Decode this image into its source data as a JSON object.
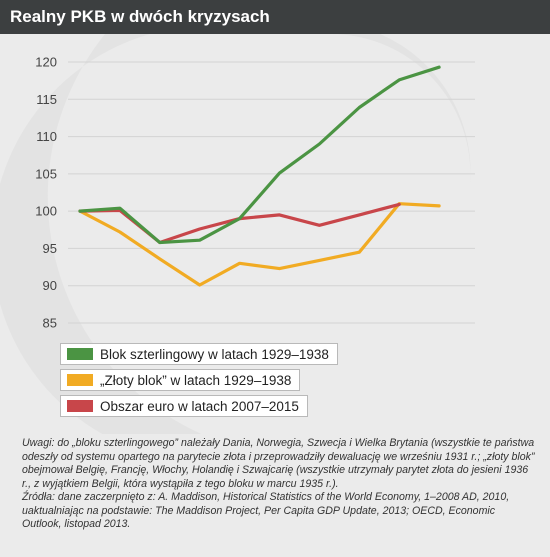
{
  "title": "Realny PKB w dwóch kryzysach",
  "colors": {
    "background": "#ebebeb",
    "title_bar": "#3c3f40",
    "grid": "#d3d3d3",
    "axis_text": "#444444"
  },
  "chart_data": {
    "type": "line",
    "title": "Realny PKB w dwóch kryzysach",
    "xlabel": "",
    "ylabel": "",
    "ylim": [
      85,
      120
    ],
    "yticks": [
      85,
      90,
      95,
      100,
      105,
      110,
      115,
      120
    ],
    "grid": true,
    "legend_position": "bottom-left",
    "x": [
      0,
      1,
      2,
      3,
      4,
      5,
      6,
      7,
      8,
      9
    ],
    "series": [
      {
        "name": "Blok szterlingowy w latach 1929–1938",
        "color": "#4b9443",
        "values": [
          100,
          100.4,
          95.8,
          96.1,
          99,
          105.1,
          109,
          113.9,
          117.6,
          119.3
        ]
      },
      {
        "name": "„Złoty blok” w latach 1929–1938",
        "color": "#f1ab23",
        "values": [
          100,
          97.2,
          93.6,
          90.1,
          93,
          92.3,
          93.4,
          94.5,
          101,
          100.7
        ]
      },
      {
        "name": "Obszar euro w latach 2007–2015",
        "color": "#c8464a",
        "values": [
          100,
          100.1,
          95.8,
          97.6,
          99,
          99.5,
          98.1,
          99.5,
          100.9,
          null
        ]
      }
    ]
  },
  "notes": [
    "Uwagi: do „bloku szterlingowego” należały Dania, Norwegia, Szwecja i Wielka Brytania (wszystkie te państwa odeszły od systemu opartego na parytecie złota i przeprowadziły dewaluację we wrześniu 1931 r.; „złoty blok” obejmował Belgię, Francję, Włochy, Holandię i Szwajcarię (wszystkie utrzymały parytet złota do jesieni 1936 r., z wyjątkiem Belgii, która wystąpiła z tego bloku w marcu 1935 r.).",
    "Źródła: dane zaczerpnięto z: A. Maddison, Historical Statistics of the World Economy, 1–2008 AD, 2010, uaktualniając na podstawie: The Maddison Project, Per Capita GDP Update, 2013; OECD, Economic Outlook, listopad 2013."
  ]
}
